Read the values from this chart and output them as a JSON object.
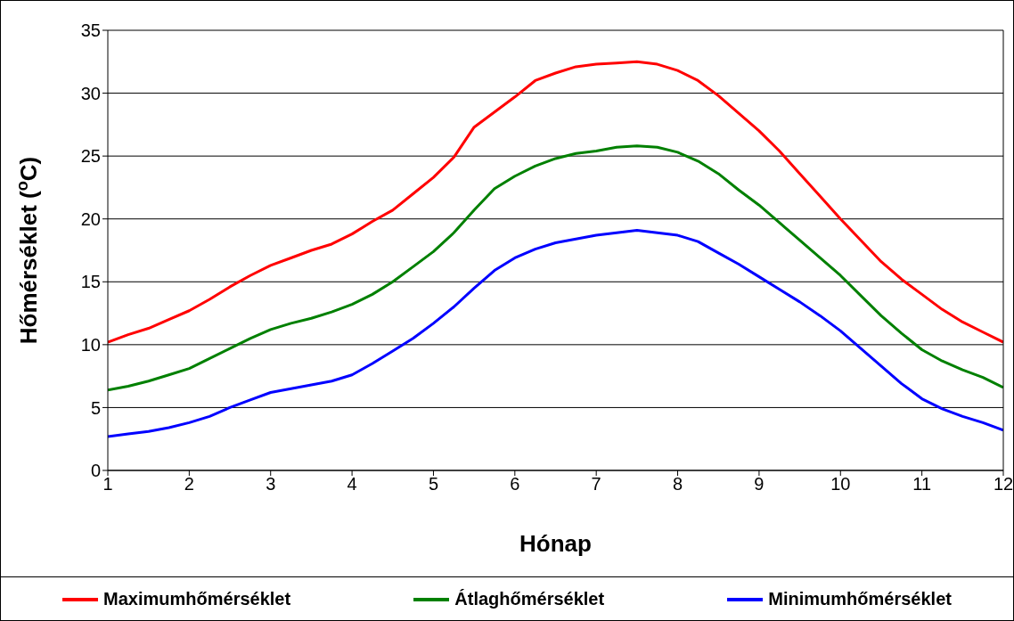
{
  "chart_data": {
    "type": "line",
    "xlabel": "Hónap",
    "ylabel": "Hőmérséklet ($^{o}$C)",
    "x": [
      1,
      1.25,
      1.5,
      1.75,
      2,
      2.25,
      2.5,
      2.75,
      3,
      3.25,
      3.5,
      3.75,
      4,
      4.25,
      4.5,
      4.75,
      5,
      5.25,
      5.5,
      5.75,
      6,
      6.25,
      6.5,
      6.75,
      7,
      7.25,
      7.5,
      7.75,
      8,
      8.25,
      8.5,
      8.75,
      9,
      9.25,
      9.5,
      9.75,
      10,
      10.25,
      10.5,
      10.75,
      11,
      11.25,
      11.5,
      11.75,
      12
    ],
    "series": [
      {
        "name": "Maximumhőmérséklet",
        "color": "#ff0000",
        "values": [
          10.2,
          10.8,
          11.3,
          12,
          12.7,
          13.6,
          14.6,
          15.5,
          16.3,
          16.9,
          17.5,
          18,
          18.8,
          19.8,
          20.7,
          22,
          23.3,
          24.9,
          27.3,
          28.5,
          29.7,
          31,
          31.6,
          32.1,
          32.3,
          32.4,
          32.5,
          32.3,
          31.8,
          31,
          29.8,
          28.4,
          27,
          25.4,
          23.6,
          21.8,
          20,
          18.3,
          16.6,
          15.2,
          14,
          12.8,
          11.8,
          11,
          10.2
        ]
      },
      {
        "name": "Átlaghőmérséklet",
        "color": "#008000",
        "values": [
          6.4,
          6.7,
          7.1,
          7.6,
          8.1,
          8.9,
          9.7,
          10.5,
          11.2,
          11.7,
          12.1,
          12.6,
          13.2,
          14,
          15,
          16.2,
          17.4,
          18.9,
          20.7,
          22.4,
          23.4,
          24.2,
          24.8,
          25.2,
          25.4,
          25.7,
          25.8,
          25.7,
          25.3,
          24.6,
          23.6,
          22.3,
          21.1,
          19.7,
          18.3,
          16.9,
          15.5,
          13.9,
          12.3,
          10.9,
          9.6,
          8.7,
          8,
          7.4,
          6.6
        ]
      },
      {
        "name": "Minimumhőmérséklet",
        "color": "#0000ff",
        "values": [
          2.7,
          2.9,
          3.1,
          3.4,
          3.8,
          4.3,
          5,
          5.6,
          6.2,
          6.5,
          6.8,
          7.1,
          7.6,
          8.5,
          9.5,
          10.5,
          11.7,
          13,
          14.5,
          15.9,
          16.9,
          17.6,
          18.1,
          18.4,
          18.7,
          18.9,
          19.1,
          18.9,
          18.7,
          18.2,
          17.3,
          16.4,
          15.4,
          14.4,
          13.4,
          12.3,
          11.1,
          9.7,
          8.3,
          6.9,
          5.7,
          4.9,
          4.3,
          3.8,
          3.2
        ]
      }
    ],
    "xlim": [
      1,
      12
    ],
    "xticks": [
      1,
      2,
      3,
      4,
      5,
      6,
      7,
      8,
      9,
      10,
      11,
      12
    ],
    "ylim": [
      0,
      35
    ],
    "yticks": [
      0,
      5,
      10,
      15,
      20,
      25,
      30,
      35
    ],
    "grid": "y",
    "legend": "bottom",
    "marker": "none",
    "line_style": "solid"
  }
}
